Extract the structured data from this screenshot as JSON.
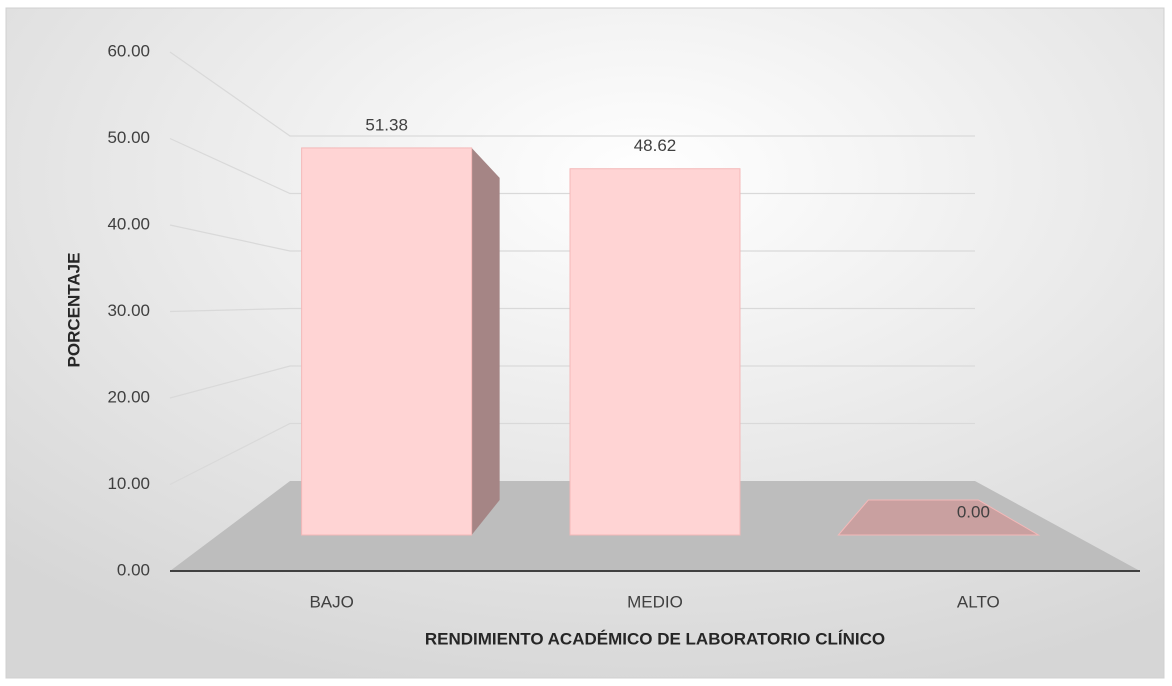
{
  "chart_data": {
    "type": "bar",
    "x_label": "RENDIMIENTO ACADÉMICO DE LABORATORIO CLÍNICO",
    "y_label": "PORCENTAJE",
    "categories": [
      "BAJO",
      "MEDIO",
      "ALTO"
    ],
    "values": [
      51.38,
      48.62,
      0
    ],
    "value_labels": [
      "51.38",
      "48.62",
      "0.00"
    ],
    "color": "#ffd4d4",
    "ylim": [
      0,
      60
    ],
    "yticks": [
      {
        "value": 0,
        "label": "0.00"
      },
      {
        "value": 10,
        "label": "10.00"
      },
      {
        "value": 20,
        "label": "20.00"
      },
      {
        "value": 30,
        "label": "30.00"
      },
      {
        "value": 40,
        "label": "40.00"
      },
      {
        "value": 50,
        "label": "50.00"
      },
      {
        "value": 60,
        "label": "60.00"
      }
    ],
    "grid": true
  }
}
